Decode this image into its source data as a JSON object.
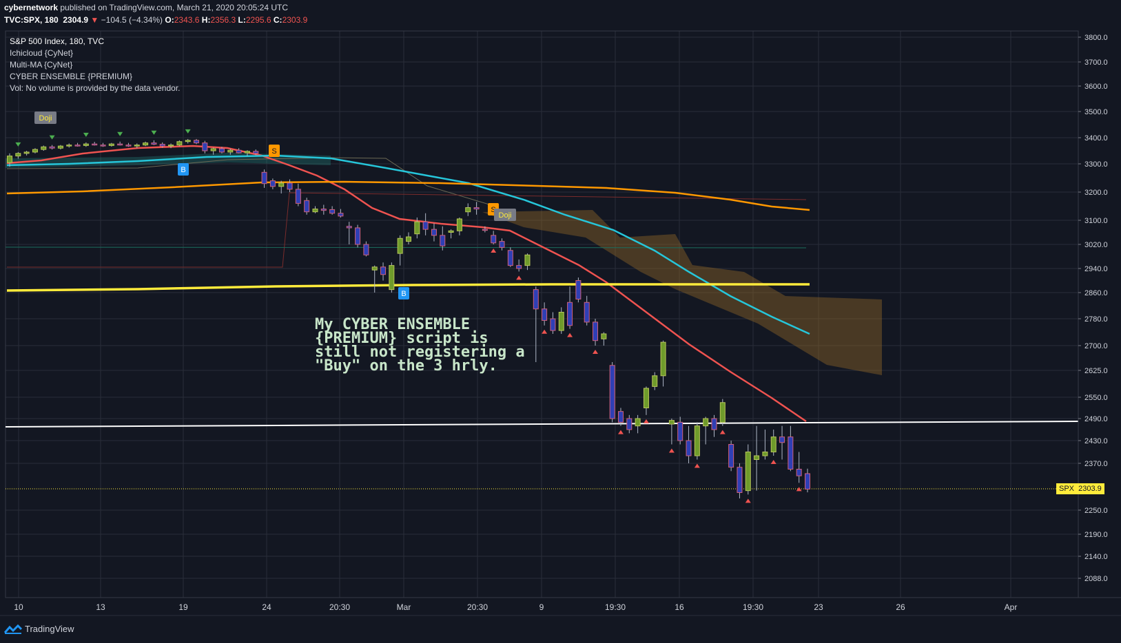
{
  "header": {
    "author": "cybernetwork",
    "published_text": "published on TradingView.com, March 21, 2020 20:05:24 UTC",
    "symbol": "TVC:SPX, 180",
    "last": "2304.9",
    "change": "−104.5 (−4.34%)",
    "o_label": "O:",
    "o_value": "2343.6",
    "h_label": "H:",
    "h_value": "2356.3",
    "l_label": "L:",
    "l_value": "2295.6",
    "c_label": "C:",
    "c_value": "2303.9"
  },
  "legend": [
    "S&P 500 Index, 180, TVC",
    "Ichicloud {CyNet}",
    "Multi-MA {CyNet}",
    "CYBER ENSEMBLE {PREMIUM}",
    "Vol: No volume is provided by the data vendor."
  ],
  "annotation": [
    "My CYBER ENSEMBLE",
    "{PREMIUM} script is",
    "still not registering a",
    "\"Buy\" on the 3 hrly."
  ],
  "price_tag": {
    "symbol": "SPX",
    "value": "2303.9"
  },
  "footer": {
    "brand": "TradingView"
  },
  "chart_data": {
    "type": "candlestick",
    "title": "S&P 500 Index, 180, TVC",
    "y_axis_ticks": [
      3800.0,
      3700.0,
      3600.0,
      3500.0,
      3400.0,
      3300.0,
      3200.0,
      3100.0,
      3020.0,
      2940.0,
      2860.0,
      2780.0,
      2700.0,
      2625.0,
      2550.0,
      2490.0,
      2430.0,
      2370.0,
      2250.0,
      2190.0,
      2140.0,
      2088.0
    ],
    "x_axis_ticks": [
      "10",
      "13",
      "19",
      "24",
      "20:30",
      "Mar",
      "20:30",
      "9",
      "19:30",
      "16",
      "19:30",
      "23",
      "26",
      "Apr"
    ],
    "ylim": [
      2030,
      3860
    ],
    "last_price": 2303.9,
    "candles": [
      {
        "o": 3305,
        "h": 3340,
        "l": 3290,
        "c": 3330
      },
      {
        "o": 3330,
        "h": 3345,
        "l": 3320,
        "c": 3340
      },
      {
        "o": 3340,
        "h": 3350,
        "l": 3332,
        "c": 3345
      },
      {
        "o": 3345,
        "h": 3360,
        "l": 3340,
        "c": 3355
      },
      {
        "o": 3355,
        "h": 3370,
        "l": 3350,
        "c": 3365
      },
      {
        "o": 3365,
        "h": 3372,
        "l": 3355,
        "c": 3360
      },
      {
        "o": 3360,
        "h": 3372,
        "l": 3355,
        "c": 3368
      },
      {
        "o": 3368,
        "h": 3378,
        "l": 3362,
        "c": 3372
      },
      {
        "o": 3372,
        "h": 3380,
        "l": 3366,
        "c": 3370
      },
      {
        "o": 3370,
        "h": 3382,
        "l": 3365,
        "c": 3376
      },
      {
        "o": 3376,
        "h": 3384,
        "l": 3370,
        "c": 3372
      },
      {
        "o": 3372,
        "h": 3380,
        "l": 3365,
        "c": 3370
      },
      {
        "o": 3370,
        "h": 3380,
        "l": 3366,
        "c": 3376
      },
      {
        "o": 3376,
        "h": 3385,
        "l": 3370,
        "c": 3372
      },
      {
        "o": 3372,
        "h": 3380,
        "l": 3365,
        "c": 3368
      },
      {
        "o": 3368,
        "h": 3378,
        "l": 3360,
        "c": 3372
      },
      {
        "o": 3372,
        "h": 3385,
        "l": 3368,
        "c": 3380
      },
      {
        "o": 3380,
        "h": 3390,
        "l": 3372,
        "c": 3375
      },
      {
        "o": 3375,
        "h": 3382,
        "l": 3362,
        "c": 3368
      },
      {
        "o": 3368,
        "h": 3378,
        "l": 3360,
        "c": 3372
      },
      {
        "o": 3372,
        "h": 3390,
        "l": 3368,
        "c": 3385
      },
      {
        "o": 3385,
        "h": 3395,
        "l": 3378,
        "c": 3390
      },
      {
        "o": 3390,
        "h": 3395,
        "l": 3375,
        "c": 3380
      },
      {
        "o": 3380,
        "h": 3388,
        "l": 3340,
        "c": 3350
      },
      {
        "o": 3350,
        "h": 3362,
        "l": 3335,
        "c": 3358
      },
      {
        "o": 3358,
        "h": 3365,
        "l": 3340,
        "c": 3345
      },
      {
        "o": 3345,
        "h": 3358,
        "l": 3335,
        "c": 3352
      },
      {
        "o": 3352,
        "h": 3360,
        "l": 3340,
        "c": 3342
      },
      {
        "o": 3342,
        "h": 3352,
        "l": 3330,
        "c": 3348
      },
      {
        "o": 3348,
        "h": 3355,
        "l": 3335,
        "c": 3340
      },
      {
        "o": 3270,
        "h": 3280,
        "l": 3215,
        "c": 3230
      },
      {
        "o": 3240,
        "h": 3248,
        "l": 3210,
        "c": 3220
      },
      {
        "o": 3220,
        "h": 3240,
        "l": 3195,
        "c": 3232
      },
      {
        "o": 3232,
        "h": 3245,
        "l": 3200,
        "c": 3210
      },
      {
        "o": 3210,
        "h": 3230,
        "l": 3150,
        "c": 3160
      },
      {
        "o": 3170,
        "h": 3180,
        "l": 3120,
        "c": 3130
      },
      {
        "o": 3130,
        "h": 3150,
        "l": 3125,
        "c": 3140
      },
      {
        "o": 3140,
        "h": 3155,
        "l": 3120,
        "c": 3135
      },
      {
        "o": 3138,
        "h": 3150,
        "l": 3120,
        "c": 3125
      },
      {
        "o": 3125,
        "h": 3140,
        "l": 3110,
        "c": 3115
      },
      {
        "o": 3080,
        "h": 3095,
        "l": 3020,
        "c": 3075
      },
      {
        "o": 3075,
        "h": 3085,
        "l": 3010,
        "c": 3020
      },
      {
        "o": 3020,
        "h": 3030,
        "l": 2980,
        "c": 2985
      },
      {
        "o": 2935,
        "h": 2950,
        "l": 2860,
        "c": 2945
      },
      {
        "o": 2945,
        "h": 2960,
        "l": 2900,
        "c": 2920
      },
      {
        "o": 2870,
        "h": 2960,
        "l": 2860,
        "c": 2950
      },
      {
        "o": 2990,
        "h": 3050,
        "l": 2950,
        "c": 3040
      },
      {
        "o": 3030,
        "h": 3060,
        "l": 3020,
        "c": 3045
      },
      {
        "o": 3055,
        "h": 3110,
        "l": 3040,
        "c": 3095
      },
      {
        "o": 3095,
        "h": 3125,
        "l": 3050,
        "c": 3070
      },
      {
        "o": 3070,
        "h": 3090,
        "l": 3030,
        "c": 3050
      },
      {
        "o": 3050,
        "h": 3080,
        "l": 3000,
        "c": 3015
      },
      {
        "o": 3060,
        "h": 3070,
        "l": 3040,
        "c": 3065
      },
      {
        "o": 3065,
        "h": 3110,
        "l": 3050,
        "c": 3105
      },
      {
        "o": 3130,
        "h": 3160,
        "l": 3115,
        "c": 3145
      },
      {
        "o": 3145,
        "h": 3165,
        "l": 3120,
        "c": 3140
      },
      {
        "o": 3070,
        "h": 3080,
        "l": 3060,
        "c": 3068
      },
      {
        "o": 3050,
        "h": 3065,
        "l": 3020,
        "c": 3025
      },
      {
        "o": 3030,
        "h": 3040,
        "l": 3000,
        "c": 3010
      },
      {
        "o": 3000,
        "h": 3010,
        "l": 2945,
        "c": 2950
      },
      {
        "o": 2950,
        "h": 2970,
        "l": 2930,
        "c": 2940
      },
      {
        "o": 2950,
        "h": 2990,
        "l": 2935,
        "c": 2985
      },
      {
        "o": 2870,
        "h": 2880,
        "l": 2650,
        "c": 2810
      },
      {
        "o": 2810,
        "h": 2830,
        "l": 2760,
        "c": 2775
      },
      {
        "o": 2780,
        "h": 2800,
        "l": 2735,
        "c": 2745
      },
      {
        "o": 2745,
        "h": 2815,
        "l": 2735,
        "c": 2800
      },
      {
        "o": 2830,
        "h": 2880,
        "l": 2750,
        "c": 2760
      },
      {
        "o": 2900,
        "h": 2910,
        "l": 2830,
        "c": 2840
      },
      {
        "o": 2830,
        "h": 2850,
        "l": 2760,
        "c": 2770
      },
      {
        "o": 2770,
        "h": 2780,
        "l": 2700,
        "c": 2715
      },
      {
        "o": 2720,
        "h": 2740,
        "l": 2700,
        "c": 2735
      },
      {
        "o": 2640,
        "h": 2650,
        "l": 2480,
        "c": 2490
      },
      {
        "o": 2510,
        "h": 2520,
        "l": 2470,
        "c": 2480
      },
      {
        "o": 2490,
        "h": 2500,
        "l": 2450,
        "c": 2460
      },
      {
        "o": 2470,
        "h": 2500,
        "l": 2450,
        "c": 2490
      },
      {
        "o": 2520,
        "h": 2580,
        "l": 2500,
        "c": 2575
      },
      {
        "o": 2580,
        "h": 2620,
        "l": 2570,
        "c": 2610
      },
      {
        "o": 2610,
        "h": 2715,
        "l": 2580,
        "c": 2710
      },
      {
        "o": 2475,
        "h": 2490,
        "l": 2420,
        "c": 2485
      },
      {
        "o": 2480,
        "h": 2495,
        "l": 2420,
        "c": 2430
      },
      {
        "o": 2430,
        "h": 2470,
        "l": 2370,
        "c": 2390
      },
      {
        "o": 2390,
        "h": 2480,
        "l": 2380,
        "c": 2470
      },
      {
        "o": 2470,
        "h": 2495,
        "l": 2420,
        "c": 2490
      },
      {
        "o": 2490,
        "h": 2500,
        "l": 2440,
        "c": 2460
      },
      {
        "o": 2480,
        "h": 2545,
        "l": 2470,
        "c": 2535
      },
      {
        "o": 2420,
        "h": 2430,
        "l": 2350,
        "c": 2360
      },
      {
        "o": 2360,
        "h": 2370,
        "l": 2280,
        "c": 2295
      },
      {
        "o": 2300,
        "h": 2420,
        "l": 2290,
        "c": 2400
      },
      {
        "o": 2380,
        "h": 2470,
        "l": 2300,
        "c": 2390
      },
      {
        "o": 2390,
        "h": 2460,
        "l": 2380,
        "c": 2400
      },
      {
        "o": 2400,
        "h": 2460,
        "l": 2390,
        "c": 2440
      },
      {
        "o": 2440,
        "h": 2470,
        "l": 2380,
        "c": 2425
      },
      {
        "o": 2440,
        "h": 2470,
        "l": 2350,
        "c": 2355
      },
      {
        "o": 2355,
        "h": 2400,
        "l": 2320,
        "c": 2338
      },
      {
        "o": 2343.6,
        "h": 2356.3,
        "l": 2295.6,
        "c": 2303.9
      }
    ],
    "moving_averages": [
      {
        "color": "#ef5350"
      },
      {
        "color": "#26c6da"
      },
      {
        "color": "#ff9800"
      },
      {
        "color": "#ffeb3b"
      },
      {
        "color": "#ffffff"
      }
    ],
    "buy_signals": [
      "B",
      "B"
    ],
    "sell_signals": [
      "S",
      "S"
    ],
    "doji_labels": [
      "Doji",
      "Doji"
    ]
  }
}
